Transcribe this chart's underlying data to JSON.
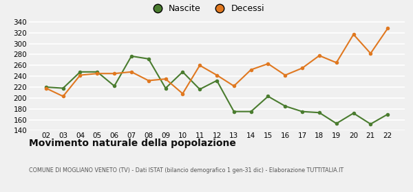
{
  "years": [
    "02",
    "03",
    "04",
    "05",
    "06",
    "07",
    "08",
    "09",
    "10",
    "11",
    "12",
    "13",
    "14",
    "15",
    "16",
    "17",
    "18",
    "19",
    "20",
    "21",
    "22"
  ],
  "nascite": [
    220,
    218,
    248,
    248,
    222,
    277,
    272,
    218,
    248,
    216,
    232,
    175,
    175,
    203,
    185,
    175,
    173,
    153,
    172,
    152,
    170
  ],
  "decessi": [
    218,
    203,
    242,
    245,
    245,
    248,
    232,
    235,
    208,
    260,
    242,
    222,
    252,
    263,
    242,
    255,
    278,
    265,
    317,
    282,
    328
  ],
  "nascite_color": "#4a7c2f",
  "decessi_color": "#e07820",
  "background_color": "#f0f0f0",
  "grid_color": "#ffffff",
  "title": "Movimento naturale della popolazione",
  "subtitle": "COMUNE DI MOGLIANO VENETO (TV) - Dati ISTAT (bilancio demografico 1 gen-31 dic) - Elaborazione TUTTITALIA.IT",
  "legend_nascite": "Nascite",
  "legend_decessi": "Decessi",
  "ylim": [
    140,
    345
  ],
  "yticks": [
    140,
    160,
    180,
    200,
    220,
    240,
    260,
    280,
    300,
    320,
    340
  ],
  "marker_size": 4,
  "line_width": 1.5,
  "tick_fontsize": 7.5,
  "legend_fontsize": 9,
  "title_fontsize": 10,
  "subtitle_fontsize": 5.8
}
